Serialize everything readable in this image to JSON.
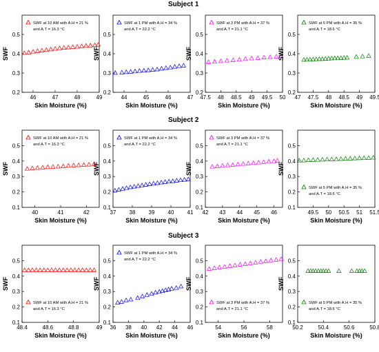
{
  "subjects": [
    "Subject 1",
    "Subject 2",
    "Subject 3"
  ],
  "chart_data": [
    {
      "type": "scatter",
      "subject": "Subject 1",
      "xlabel": "Skin Moisture (%)",
      "ylabel": "SWF",
      "legend": [
        "SWF at 10 AM with A.H = 21 %",
        "and A.T = 16.3 °C"
      ],
      "legend_pos": "top",
      "color": "#ff0000",
      "xlim": [
        45.5,
        49
      ],
      "ylim": [
        0.2,
        0.6
      ],
      "xticks": [
        46,
        47,
        48,
        49
      ],
      "yticks": [
        0.2,
        0.3,
        0.4,
        0.5
      ],
      "x": [
        45.6,
        45.8,
        46.0,
        46.2,
        46.4,
        46.6,
        46.8,
        47.0,
        47.2,
        47.4,
        47.6,
        47.8,
        48.0,
        48.2,
        48.4,
        48.6,
        48.8,
        48.95
      ],
      "y": [
        0.405,
        0.408,
        0.412,
        0.415,
        0.418,
        0.421,
        0.424,
        0.427,
        0.43,
        0.432,
        0.434,
        0.436,
        0.438,
        0.44,
        0.442,
        0.444,
        0.446,
        0.448
      ]
    },
    {
      "type": "scatter",
      "subject": "Subject 1",
      "xlabel": "Skin Moisture (%)",
      "ylabel": "SWF",
      "legend": [
        "SWF at 1 PM with A.H = 34 %",
        "and A.T = 22.2 °C"
      ],
      "legend_pos": "top",
      "color": "#0000ff",
      "xlim": [
        43.5,
        47
      ],
      "ylim": [
        0.2,
        0.6
      ],
      "xticks": [
        44,
        45,
        46,
        47
      ],
      "yticks": [
        0.2,
        0.3,
        0.4,
        0.5
      ],
      "x": [
        43.6,
        43.9,
        44.1,
        44.3,
        44.5,
        44.7,
        44.9,
        45.1,
        45.3,
        45.5,
        45.7,
        45.9,
        46.1,
        46.3,
        46.5,
        46.7
      ],
      "y": [
        0.302,
        0.304,
        0.306,
        0.308,
        0.31,
        0.312,
        0.314,
        0.316,
        0.318,
        0.32,
        0.324,
        0.327,
        0.33,
        0.334,
        0.337,
        0.34
      ]
    },
    {
      "type": "scatter",
      "subject": "Subject 1",
      "xlabel": "Skin Moisture (%)",
      "ylabel": "SWF",
      "legend": [
        "SWF at 3 PM with A.H = 37 %",
        "and A.T = 21.1 °C"
      ],
      "legend_pos": "top",
      "color": "#ff00ff",
      "xlim": [
        47.5,
        50
      ],
      "ylim": [
        0.2,
        0.6
      ],
      "xticks": [
        47.5,
        48,
        48.5,
        49,
        49.5,
        50
      ],
      "yticks": [
        0.2,
        0.3,
        0.4,
        0.5
      ],
      "x": [
        47.6,
        47.8,
        48.0,
        48.2,
        48.4,
        48.6,
        48.8,
        49.0,
        49.2,
        49.4,
        49.6,
        49.8,
        49.95
      ],
      "y": [
        0.357,
        0.36,
        0.363,
        0.366,
        0.368,
        0.371,
        0.374,
        0.377,
        0.379,
        0.382,
        0.384,
        0.386,
        0.389
      ]
    },
    {
      "type": "scatter",
      "subject": "Subject 1",
      "xlabel": "Skin Moisture (%)",
      "ylabel": "SWF",
      "legend": [
        "SWF at 5 PM with A.H = 35 %",
        "and A.T = 18.6 °C"
      ],
      "legend_pos": "top",
      "color": "#008000",
      "xlim": [
        47,
        49.5
      ],
      "ylim": [
        0.2,
        0.6
      ],
      "xticks": [
        47,
        47.5,
        48,
        48.5,
        49,
        49.5
      ],
      "yticks": [
        0.2,
        0.3,
        0.4,
        0.5
      ],
      "x": [
        47.2,
        47.3,
        47.4,
        47.5,
        47.6,
        47.7,
        47.8,
        47.9,
        48.0,
        48.1,
        48.2,
        48.3,
        48.4,
        48.5,
        48.6,
        48.9,
        49.1,
        49.3
      ],
      "y": [
        0.37,
        0.371,
        0.371,
        0.372,
        0.373,
        0.374,
        0.374,
        0.375,
        0.376,
        0.377,
        0.378,
        0.378,
        0.379,
        0.38,
        0.381,
        0.385,
        0.387,
        0.39
      ]
    },
    {
      "type": "scatter",
      "subject": "Subject 2",
      "xlabel": "Skin Moisture (%)",
      "ylabel": "SWF",
      "legend": [
        "SWF at 10 AM with A.H = 21 %",
        "and A.T = 16.3 °C"
      ],
      "legend_pos": "top",
      "color": "#ff0000",
      "xlim": [
        39.5,
        42.5
      ],
      "ylim": [
        0.1,
        0.6
      ],
      "xticks": [
        40,
        41,
        42
      ],
      "yticks": [
        0.1,
        0.2,
        0.3,
        0.4,
        0.5
      ],
      "x": [
        39.7,
        39.9,
        40.1,
        40.3,
        40.5,
        40.7,
        40.9,
        41.1,
        41.3,
        41.5,
        41.7,
        41.9,
        42.1,
        42.3
      ],
      "y": [
        0.352,
        0.355,
        0.357,
        0.36,
        0.362,
        0.364,
        0.366,
        0.368,
        0.371,
        0.373,
        0.375,
        0.377,
        0.379,
        0.382
      ]
    },
    {
      "type": "scatter",
      "subject": "Subject 2",
      "xlabel": "Skin Moisture (%)",
      "ylabel": "SWF",
      "legend": [
        "SWF at 1 PM with A.H = 34 %",
        "and A.T = 22.2 °C"
      ],
      "legend_pos": "top",
      "color": "#0000ff",
      "xlim": [
        37,
        41
      ],
      "ylim": [
        0.1,
        0.6
      ],
      "xticks": [
        37,
        38,
        39,
        40,
        41
      ],
      "yticks": [
        0.1,
        0.2,
        0.3,
        0.4,
        0.5
      ],
      "x": [
        37.1,
        37.3,
        37.5,
        37.7,
        37.9,
        38.1,
        38.3,
        38.5,
        38.7,
        38.9,
        39.1,
        39.3,
        39.5,
        39.7,
        39.9,
        40.1,
        40.3,
        40.5,
        40.7,
        40.9
      ],
      "y": [
        0.21,
        0.216,
        0.222,
        0.227,
        0.232,
        0.236,
        0.24,
        0.244,
        0.248,
        0.252,
        0.256,
        0.259,
        0.263,
        0.266,
        0.269,
        0.272,
        0.275,
        0.278,
        0.281,
        0.284
      ]
    },
    {
      "type": "scatter",
      "subject": "Subject 2",
      "xlabel": "Skin Moisture (%)",
      "ylabel": "SWF",
      "legend": [
        "SWF at 3 PM with A.H = 37 %",
        "and A.T = 21.1 °C"
      ],
      "legend_pos": "top",
      "color": "#ff00ff",
      "xlim": [
        42,
        46.5
      ],
      "ylim": [
        0.1,
        0.6
      ],
      "xticks": [
        42,
        43,
        44,
        45,
        46
      ],
      "yticks": [
        0.1,
        0.2,
        0.3,
        0.4,
        0.5
      ],
      "x": [
        42.4,
        42.7,
        43.0,
        43.3,
        43.6,
        43.9,
        44.2,
        44.5,
        44.8,
        45.1,
        45.4,
        45.7,
        46.0,
        46.2
      ],
      "y": [
        0.365,
        0.368,
        0.371,
        0.374,
        0.377,
        0.38,
        0.383,
        0.386,
        0.389,
        0.392,
        0.395,
        0.398,
        0.401,
        0.404
      ]
    },
    {
      "type": "scatter",
      "subject": "Subject 2",
      "xlabel": "Skin Moisture (%)",
      "ylabel": "SWF",
      "legend": [
        "SWF at 5 PM with A.H = 35 %",
        "and A.T = 18.6 °C"
      ],
      "legend_pos": "bottom",
      "color": "#008000",
      "xlim": [
        49,
        51.5
      ],
      "ylim": [
        0.1,
        0.6
      ],
      "xticks": [
        49.5,
        50,
        50.5,
        51,
        51.5
      ],
      "yticks": [
        0.1,
        0.2,
        0.3,
        0.4,
        0.5
      ],
      "x": [
        49.05,
        49.2,
        49.35,
        49.5,
        49.65,
        49.8,
        49.95,
        50.1,
        50.25,
        50.4,
        50.55,
        50.7,
        50.85,
        51.0,
        51.15,
        51.3,
        51.45
      ],
      "y": [
        0.405,
        0.406,
        0.408,
        0.409,
        0.41,
        0.411,
        0.412,
        0.413,
        0.414,
        0.415,
        0.417,
        0.418,
        0.419,
        0.42,
        0.421,
        0.422,
        0.424
      ]
    },
    {
      "type": "scatter",
      "subject": "Subject 3",
      "xlabel": "Skin Moisture (%)",
      "ylabel": "SWF",
      "legend": [
        "SWF at 10 AM with A.H = 21 %",
        "and A.T = 16.3 °C"
      ],
      "legend_pos": "bottom",
      "color": "#ff0000",
      "xlim": [
        48.4,
        49
      ],
      "ylim": [
        0.1,
        0.6
      ],
      "xticks": [
        48.4,
        48.6,
        48.8,
        49
      ],
      "yticks": [
        0.1,
        0.2,
        0.3,
        0.4,
        0.5
      ],
      "x": [
        48.42,
        48.45,
        48.48,
        48.51,
        48.54,
        48.57,
        48.6,
        48.63,
        48.66,
        48.69,
        48.72,
        48.75,
        48.78,
        48.81,
        48.84,
        48.87,
        48.9,
        48.93,
        48.96
      ],
      "y": [
        0.44,
        0.44,
        0.44,
        0.44,
        0.44,
        0.44,
        0.44,
        0.44,
        0.44,
        0.44,
        0.44,
        0.44,
        0.44,
        0.44,
        0.44,
        0.44,
        0.44,
        0.44,
        0.44
      ]
    },
    {
      "type": "scatter",
      "subject": "Subject 3",
      "xlabel": "Skin Moisture (%)",
      "ylabel": "SWF",
      "legend": [
        "SWF at 1 PM with A.H = 34 %",
        "and A.T = 22.2 °C"
      ],
      "legend_pos": "top",
      "color": "#0000ff",
      "xlim": [
        36,
        46
      ],
      "ylim": [
        0.1,
        0.6
      ],
      "xticks": [
        36,
        38,
        40,
        42,
        44,
        46
      ],
      "yticks": [
        0.1,
        0.2,
        0.3,
        0.4,
        0.5
      ],
      "x": [
        36.6,
        37.1,
        37.7,
        38.3,
        39.2,
        39.8,
        40.4,
        41.0,
        41.5,
        42.0,
        42.4,
        42.8,
        43.2,
        43.6,
        44.2,
        44.8
      ],
      "y": [
        0.23,
        0.235,
        0.245,
        0.25,
        0.26,
        0.27,
        0.28,
        0.287,
        0.295,
        0.3,
        0.305,
        0.31,
        0.315,
        0.32,
        0.325,
        0.335
      ]
    },
    {
      "type": "scatter",
      "subject": "Subject 3",
      "xlabel": "Skin Moisture (%)",
      "ylabel": "SWF",
      "legend": [
        "SWF at 3 PM with A.H = 37 %",
        "and A.T = 21.1 °C"
      ],
      "legend_pos": "bottom",
      "color": "#ff00ff",
      "xlim": [
        53,
        59
      ],
      "ylim": [
        0.1,
        0.6
      ],
      "xticks": [
        54,
        56,
        58
      ],
      "yticks": [
        0.1,
        0.2,
        0.3,
        0.4,
        0.5
      ],
      "x": [
        53.3,
        53.7,
        54.1,
        54.5,
        54.9,
        55.3,
        55.7,
        56.1,
        56.5,
        56.9,
        57.3,
        57.7,
        58.1,
        58.5,
        58.9
      ],
      "y": [
        0.448,
        0.453,
        0.458,
        0.462,
        0.467,
        0.471,
        0.476,
        0.48,
        0.485,
        0.489,
        0.494,
        0.498,
        0.503,
        0.507,
        0.512
      ]
    },
    {
      "type": "scatter",
      "subject": "Subject 3",
      "xlabel": "Skin Moisture (%)",
      "ylabel": "SWF",
      "legend": [
        "SWF at 5 PM with A.H = 35 %",
        "and A.T = 18.6 °C"
      ],
      "legend_pos": "bottom",
      "color": "#008000",
      "xlim": [
        50.2,
        50.8
      ],
      "ylim": [
        0.1,
        0.6
      ],
      "xticks": [
        50.2,
        50.4,
        50.6,
        50.8
      ],
      "yticks": [
        0.1,
        0.2,
        0.3,
        0.4,
        0.5
      ],
      "x": [
        50.28,
        50.3,
        50.32,
        50.34,
        50.36,
        50.38,
        50.4,
        50.42,
        50.44,
        50.52,
        50.62,
        50.66,
        50.68,
        50.7,
        50.72
      ],
      "y": [
        0.435,
        0.435,
        0.435,
        0.435,
        0.435,
        0.435,
        0.435,
        0.435,
        0.435,
        0.435,
        0.435,
        0.435,
        0.435,
        0.435,
        0.435
      ]
    }
  ]
}
